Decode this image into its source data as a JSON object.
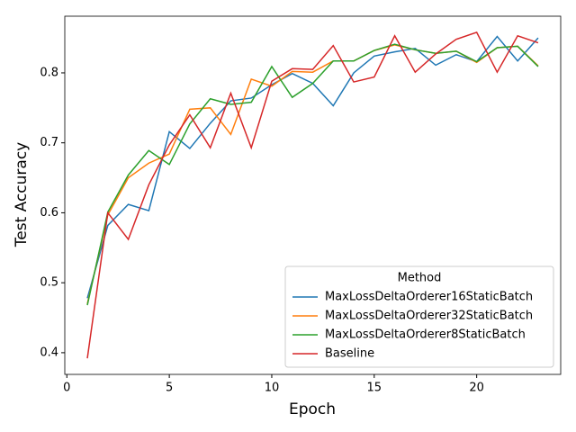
{
  "chart_data": {
    "type": "line",
    "x_label": "Epoch",
    "y_label": "Test Accuracy",
    "legend_title": "Method",
    "legend_position": "lower right",
    "x": [
      1,
      2,
      3,
      4,
      5,
      6,
      7,
      8,
      9,
      10,
      11,
      12,
      13,
      14,
      15,
      16,
      17,
      18,
      19,
      20,
      21,
      22,
      23
    ],
    "xlim": [
      -0.1,
      24.1
    ],
    "xticks": [
      0,
      5,
      10,
      15,
      20
    ],
    "ylim": [
      0.369,
      0.881
    ],
    "yticks": [
      0.4,
      0.5,
      0.6,
      0.7,
      0.8
    ],
    "series": [
      {
        "name": "MaxLossDeltaOrderer16StaticBatch",
        "color": "#1f77b4",
        "values": [
          0.478,
          0.582,
          0.612,
          0.603,
          0.716,
          0.692,
          0.728,
          0.76,
          0.764,
          0.783,
          0.799,
          0.785,
          0.753,
          0.8,
          0.824,
          0.83,
          0.835,
          0.811,
          0.826,
          0.816,
          0.852,
          0.817,
          0.85
        ]
      },
      {
        "name": "MaxLossDeltaOrderer32StaticBatch",
        "color": "#ff7f0e",
        "values": [
          0.47,
          0.597,
          0.65,
          0.671,
          0.684,
          0.748,
          0.75,
          0.712,
          0.791,
          0.781,
          0.802,
          0.801,
          0.817,
          0.817,
          0.832,
          0.84,
          0.833,
          0.828,
          0.831,
          0.815,
          0.836,
          0.838,
          0.81
        ]
      },
      {
        "name": "MaxLossDeltaOrderer8StaticBatch",
        "color": "#2ca02c",
        "values": [
          0.468,
          0.601,
          0.654,
          0.689,
          0.669,
          0.727,
          0.763,
          0.755,
          0.758,
          0.809,
          0.765,
          0.785,
          0.817,
          0.817,
          0.832,
          0.841,
          0.833,
          0.828,
          0.831,
          0.816,
          0.836,
          0.838,
          0.809
        ]
      },
      {
        "name": "Baseline",
        "color": "#d62728",
        "values": [
          0.392,
          0.6,
          0.562,
          0.64,
          0.697,
          0.74,
          0.693,
          0.771,
          0.693,
          0.788,
          0.806,
          0.805,
          0.839,
          0.787,
          0.794,
          0.853,
          0.801,
          0.827,
          0.848,
          0.858,
          0.801,
          0.853,
          0.843
        ]
      }
    ]
  }
}
